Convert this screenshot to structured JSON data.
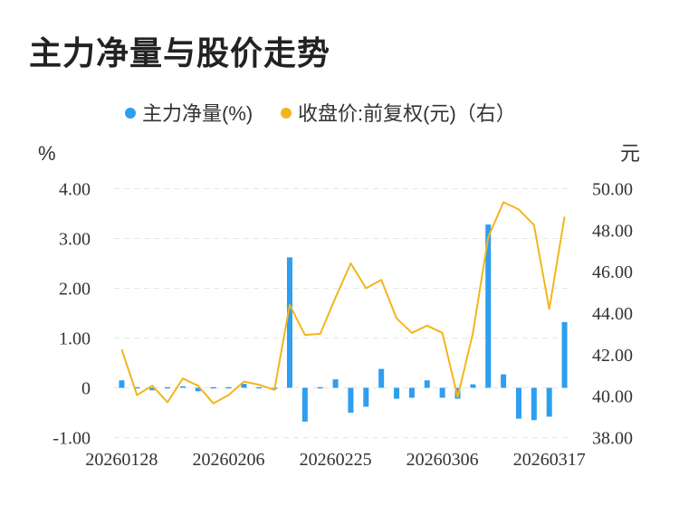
{
  "page": {
    "title": "主力净量与股价走势"
  },
  "chart_data": {
    "type": "bar+line",
    "legend": {
      "placement": "top-center",
      "items": [
        {
          "label": "主力净量(%)",
          "color": "#2e9ef0",
          "marker": "dot"
        },
        {
          "label": "收盘价:前复权(元)（右）",
          "color": "#f2b61c",
          "marker": "dot"
        }
      ]
    },
    "y_left": {
      "unit": "%",
      "ticks": [
        "4.00",
        "3.00",
        "2.00",
        "1.00",
        "0",
        "-1.00"
      ],
      "range": [
        -1,
        4
      ]
    },
    "y_right": {
      "unit": "元",
      "ticks": [
        "50.00",
        "48.00",
        "46.00",
        "44.00",
        "42.00",
        "40.00",
        "38.00"
      ],
      "range": [
        38,
        50
      ]
    },
    "x_labels": [
      "20260128",
      "20260206",
      "20260225",
      "20260306",
      "20260317"
    ],
    "x_label_indices": [
      0,
      7,
      14,
      21,
      28
    ],
    "grid": true,
    "colors": {
      "bar": "#2e9ef0",
      "line": "#f2b61c",
      "grid": "#e6e6e6"
    },
    "series": [
      {
        "name": "主力净量(%)",
        "type": "bar",
        "values": [
          0.15,
          -0.02,
          -0.05,
          -0.02,
          0.03,
          -0.07,
          0.01,
          0.0,
          0.08,
          -0.02,
          -0.03,
          2.62,
          -0.68,
          0.0,
          0.17,
          -0.5,
          -0.38,
          0.38,
          -0.22,
          -0.2,
          0.15,
          -0.2,
          -0.22,
          0.07,
          3.28,
          0.27,
          -0.62,
          -0.65,
          -0.58,
          1.32
        ]
      },
      {
        "name": "收盘价:前复权(元)（右）",
        "type": "line",
        "values": [
          42.25,
          40.05,
          40.5,
          39.7,
          40.85,
          40.5,
          39.65,
          40.05,
          40.7,
          40.55,
          40.3,
          44.4,
          42.95,
          43.0,
          44.75,
          46.4,
          45.2,
          45.6,
          43.75,
          43.05,
          43.4,
          43.05,
          39.95,
          43.05,
          47.65,
          49.35,
          49.0,
          48.25,
          44.2,
          48.65
        ]
      }
    ]
  }
}
